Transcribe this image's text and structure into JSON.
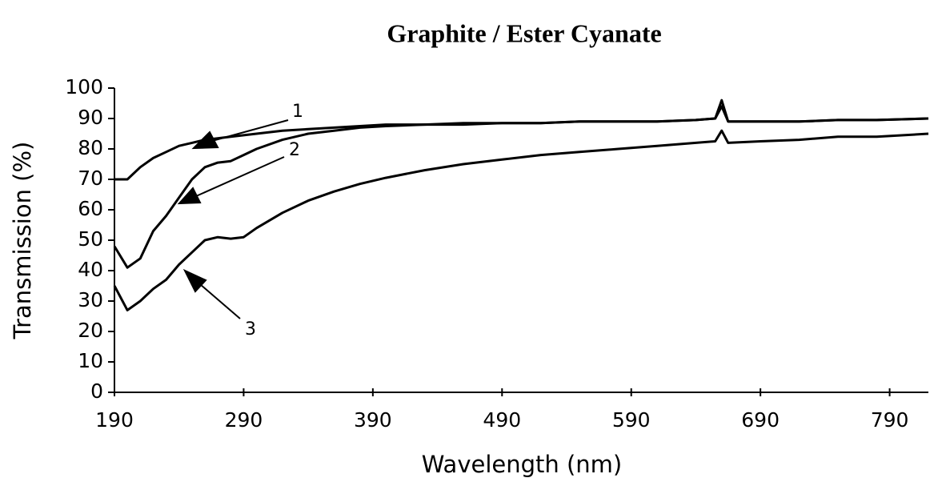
{
  "chart_data": {
    "type": "line",
    "title": "Graphite /  Ester Cyanate",
    "x_label": "Wavelength (nm)",
    "y_label": "Transmission (%)",
    "x": [
      190,
      200,
      210,
      220,
      230,
      240,
      250,
      260,
      270,
      280,
      290,
      300,
      320,
      340,
      360,
      380,
      400,
      430,
      460,
      490,
      520,
      550,
      580,
      610,
      640,
      655,
      660,
      665,
      690,
      720,
      750,
      780,
      820
    ],
    "series": [
      {
        "name": "1",
        "color": "#000000",
        "values": [
          70,
          70,
          74,
          77,
          79,
          81,
          82,
          83,
          83.5,
          84,
          84.5,
          85,
          86,
          86.5,
          87,
          87.5,
          88,
          88,
          88.5,
          88.5,
          88.5,
          89,
          89,
          89,
          89.5,
          90,
          96,
          89,
          89,
          89,
          89.5,
          89.5,
          90
        ]
      },
      {
        "name": "2",
        "color": "#000000",
        "values": [
          48,
          41,
          44,
          53,
          58,
          64,
          70,
          74,
          75.5,
          76,
          78,
          80,
          83,
          85,
          86,
          87,
          87.5,
          88,
          88,
          88.5,
          88.5,
          89,
          89,
          89,
          89.5,
          90,
          94,
          89,
          89,
          89,
          89.5,
          89.5,
          90
        ]
      },
      {
        "name": "3",
        "color": "#000000",
        "values": [
          35,
          27,
          30,
          34,
          37,
          42,
          46,
          50,
          51,
          50.5,
          51,
          54,
          59,
          63,
          66,
          68.5,
          70.5,
          73,
          75,
          76.5,
          78,
          79,
          80,
          81,
          82,
          82.5,
          86,
          82,
          82.5,
          83,
          84,
          84,
          85
        ]
      }
    ],
    "xlim": [
      190,
      820
    ],
    "ylim": [
      0,
      100
    ],
    "xticks": [
      190,
      290,
      390,
      490,
      590,
      690,
      790
    ],
    "yticks": [
      0,
      10,
      20,
      30,
      40,
      50,
      60,
      70,
      80,
      90,
      100
    ]
  }
}
